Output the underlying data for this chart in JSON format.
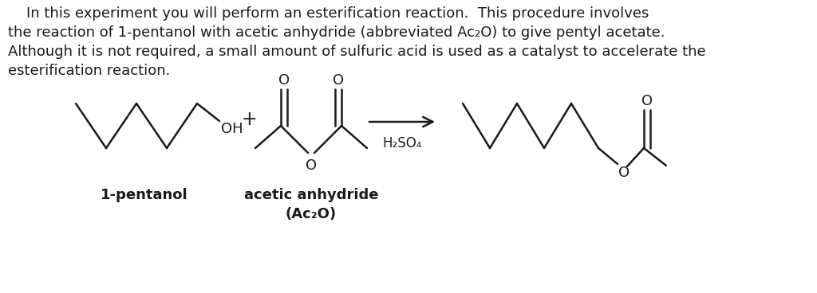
{
  "bg_color": "#ffffff",
  "text_color": "#1a1a1a",
  "para_line1": "    In this experiment you will perform an esterification reaction.  This procedure involves",
  "para_line2": "the reaction of 1-pentanol with acetic anhydride (abbreviated Ac₂O) to give pentyl acetate.",
  "para_line3": "Although it is not required, a small amount of sulfuric acid is used as a catalyst to accelerate the",
  "para_line4": "esterification reaction.",
  "label_1pentanol": "1-pentanol",
  "label_acetic": "acetic anhydride",
  "label_ac2o": "(Ac₂O)",
  "label_h2so4": "H₂SO₄",
  "font_size_para": 13.0,
  "font_size_label": 12.5,
  "font_size_atom": 13.0,
  "lw": 1.8
}
